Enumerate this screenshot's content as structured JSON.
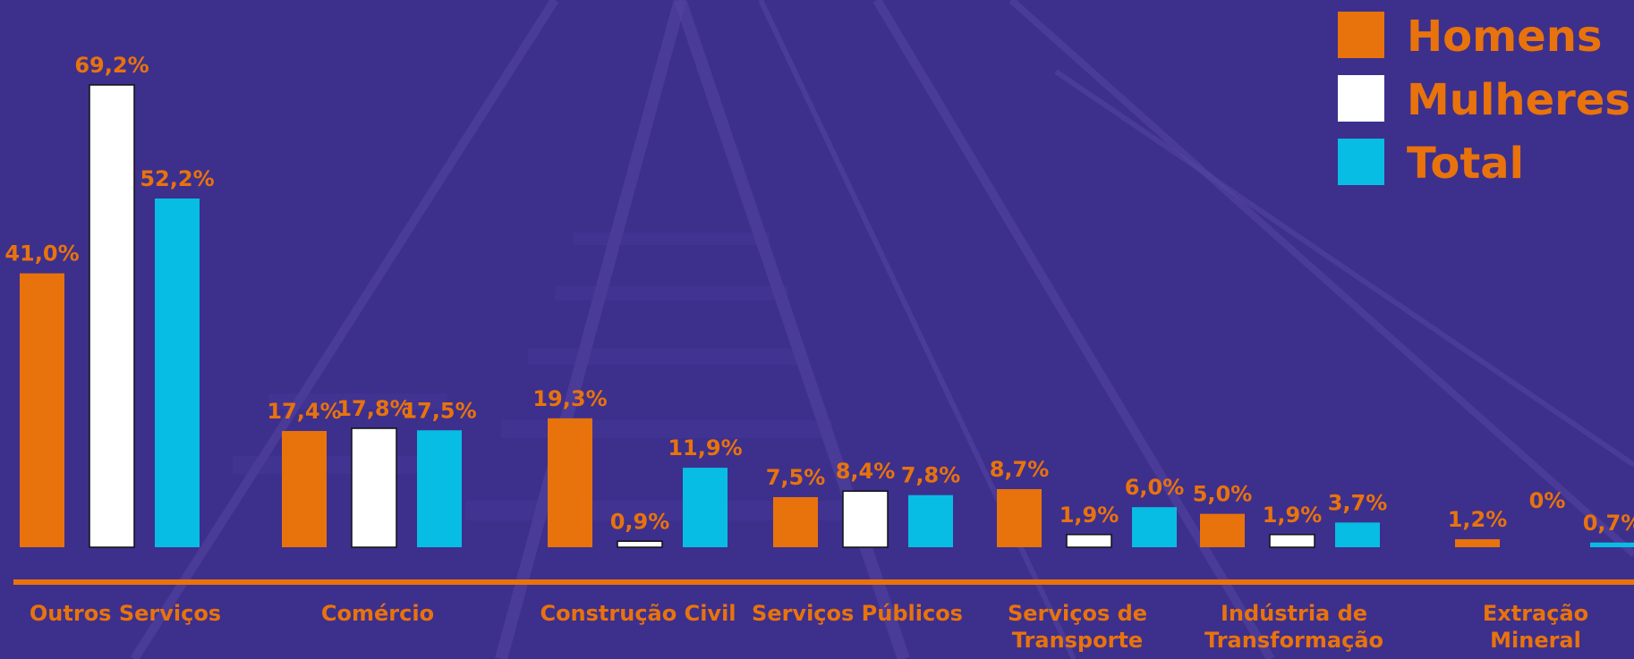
{
  "colors": {
    "background": "#3d2f8c",
    "homens": "#e8730c",
    "mulheres": "#ffffff",
    "total": "#08bde3",
    "accent": "#e8730c"
  },
  "legend": [
    {
      "label": "Homens",
      "color": "#e8730c"
    },
    {
      "label": "Mulheres",
      "color": "#ffffff"
    },
    {
      "label": "Total",
      "color": "#08bde3"
    }
  ],
  "chart_data": {
    "type": "bar",
    "categories": [
      [
        "Outros Serviços"
      ],
      [
        "Comércio"
      ],
      [
        "Construção Civil"
      ],
      [
        "Serviços Públicos"
      ],
      [
        "Serviços de",
        "Transporte"
      ],
      [
        "Indústria de",
        "Transformação"
      ],
      [
        "Extração",
        "Mineral"
      ]
    ],
    "series": [
      {
        "name": "Homens",
        "values": [
          41.0,
          17.4,
          19.3,
          7.5,
          8.7,
          5.0,
          1.2
        ],
        "labels": [
          "41,0%",
          "17,4%",
          "19,3%",
          "7,5%",
          "8,7%",
          "5,0%",
          "1,2%"
        ]
      },
      {
        "name": "Mulheres",
        "values": [
          69.2,
          17.8,
          0.9,
          8.4,
          1.9,
          1.9,
          0
        ],
        "labels": [
          "69,2%",
          "17,8%",
          "0,9%",
          "8,4%",
          "1,9%",
          "1,9%",
          "0%"
        ]
      },
      {
        "name": "Total",
        "values": [
          52.2,
          17.5,
          11.9,
          7.8,
          6.0,
          3.7,
          0.7
        ],
        "labels": [
          "52,2%",
          "17,5%",
          "11,9%",
          "7,8%",
          "6,0%",
          "3,7%",
          "0,7%"
        ]
      }
    ],
    "ylim": [
      0,
      69.2
    ],
    "legend_position": "top-right",
    "grid": false
  }
}
